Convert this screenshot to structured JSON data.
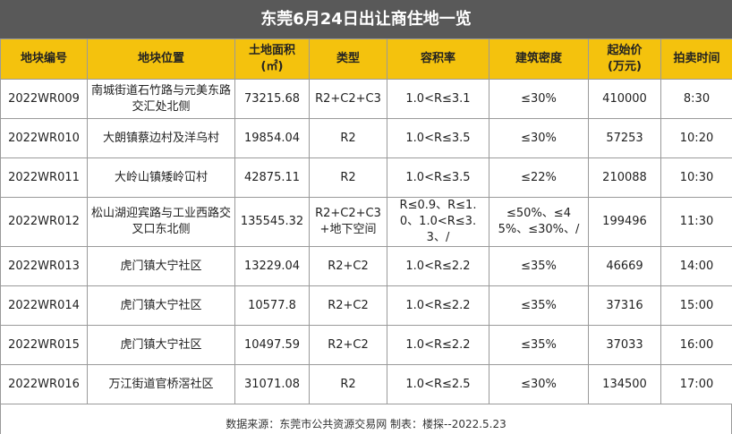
{
  "title": "东莞6月24日出让商住地一览",
  "table": {
    "headers": [
      "地块编号",
      "地块位置",
      [
        "土地面积",
        "(㎡)"
      ],
      "类型",
      "容积率",
      "建筑密度",
      [
        "起始价",
        "(万元)"
      ],
      "拍卖时间"
    ],
    "rows": [
      [
        "2022WR009",
        "南城街道石竹路与元美东路交汇处北侧",
        "73215.68",
        "R2+C2+C3",
        "1.0<R≤3.1",
        "≤30%",
        "410000",
        "8:30"
      ],
      [
        "2022WR010",
        "大朗镇蔡边村及洋乌村",
        "19854.04",
        "R2",
        "1.0<R≤3.5",
        "≤30%",
        "57253",
        "10:20"
      ],
      [
        "2022WR011",
        "大岭山镇矮岭冚村",
        "42875.11",
        "R2",
        "1.0<R≤3.5",
        "≤22%",
        "210088",
        "10:30"
      ],
      [
        "2022WR012",
        "松山湖迎宾路与工业西路交叉口东北侧",
        "135545.32",
        "R2+C2+C3+地下空间",
        "R≤0.9、R≤1.0、1.0<R≤3.3、/",
        "≤50%、≤45%、≤30%、/",
        "199496",
        "11:30"
      ],
      [
        "2022WR013",
        "虎门镇大宁社区",
        "13229.04",
        "R2+C2",
        "1.0<R≤2.2",
        "≤35%",
        "46669",
        "14:00"
      ],
      [
        "2022WR014",
        "虎门镇大宁社区",
        "10577.8",
        "R2+C2",
        "1.0<R≤2.2",
        "≤35%",
        "37316",
        "15:00"
      ],
      [
        "2022WR015",
        "虎门镇大宁社区",
        "10497.59",
        "R2+C2",
        "1.0<R≤2.2",
        "≤35%",
        "37033",
        "16:00"
      ],
      [
        "2022WR016",
        "万江街道官桥滘社区",
        "31071.08",
        "R2",
        "1.0<R≤2.5",
        "≤30%",
        "134500",
        "17:00"
      ]
    ]
  },
  "footer": "数据来源：东莞市公共资源交易网 制表：楼探--2022.5.23"
}
